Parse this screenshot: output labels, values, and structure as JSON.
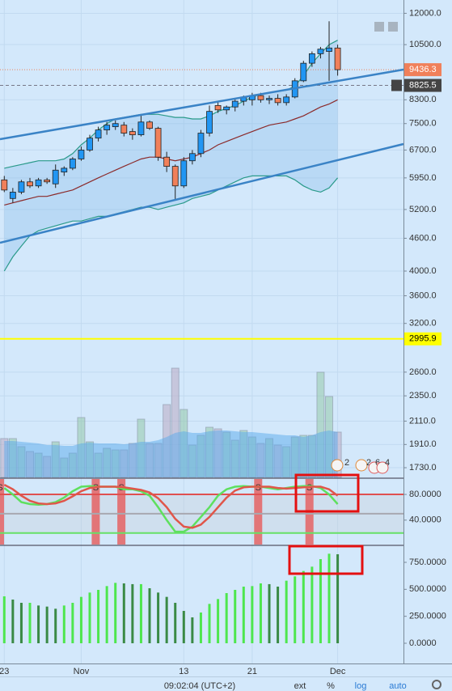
{
  "chart_data": [
    {
      "type": "candlestick",
      "x": [
        0,
        1,
        2,
        3,
        4,
        5,
        6,
        7,
        8,
        9,
        10,
        11,
        12,
        13,
        14,
        15,
        16,
        17,
        18,
        19,
        20,
        21,
        22,
        23,
        24,
        25,
        26,
        27,
        28,
        29,
        30,
        31,
        32,
        33,
        34,
        35,
        36,
        37,
        38,
        39
      ],
      "open": [
        5900,
        5450,
        5600,
        5850,
        5750,
        5900,
        5800,
        6100,
        6200,
        6450,
        6700,
        7050,
        7300,
        7400,
        7450,
        7250,
        7150,
        7550,
        7350,
        6500,
        6250,
        5750,
        6400,
        6600,
        7200,
        8100,
        7950,
        8050,
        8250,
        8300,
        8450,
        8300,
        8350,
        8200,
        8400,
        9000,
        9700,
        10100,
        10200,
        10350
      ],
      "high": [
        6000,
        5700,
        5900,
        5950,
        5950,
        5950,
        6300,
        6250,
        6500,
        6800,
        7150,
        7400,
        7550,
        7600,
        7550,
        7350,
        7800,
        7600,
        7400,
        6650,
        6300,
        6500,
        6700,
        7300,
        8100,
        8250,
        8100,
        8350,
        8450,
        8550,
        8550,
        8450,
        8500,
        8500,
        9100,
        9800,
        10200,
        10400,
        11600,
        10500
      ],
      "low": [
        5600,
        5350,
        5550,
        5700,
        5700,
        5800,
        5700,
        6000,
        6150,
        6400,
        6650,
        6950,
        7150,
        7300,
        7100,
        7000,
        7100,
        7300,
        6400,
        6100,
        5400,
        5700,
        6300,
        6500,
        7100,
        7850,
        7800,
        7900,
        8100,
        8100,
        8200,
        8150,
        8100,
        8100,
        8350,
        8950,
        9550,
        9900,
        9000,
        9200
      ],
      "close": [
        5650,
        5600,
        5850,
        5750,
        5900,
        5850,
        6150,
        6200,
        6450,
        6700,
        7050,
        7300,
        7450,
        7500,
        7200,
        7150,
        7550,
        7350,
        6500,
        6250,
        5750,
        6400,
        6600,
        7200,
        7900,
        7950,
        8050,
        8250,
        8400,
        8450,
        8300,
        8350,
        8200,
        8400,
        9000,
        9700,
        10100,
        10300,
        10350,
        9436.3
      ],
      "up_color": "#2196f3",
      "down_color": "#f0805a",
      "upper_band": [
        6200,
        6250,
        6300,
        6350,
        6400,
        6400,
        6400,
        6450,
        6600,
        6850,
        7050,
        7300,
        7500,
        7650,
        7700,
        7750,
        7800,
        7800,
        7800,
        7750,
        7700,
        7700,
        7650,
        7650,
        7750,
        7900,
        8000,
        8100,
        8250,
        8400,
        8500,
        8550,
        8600,
        8650,
        8800,
        9200,
        9700,
        10100,
        10500,
        10700
      ],
      "middle_band": [
        5300,
        5350,
        5400,
        5450,
        5500,
        5500,
        5550,
        5600,
        5650,
        5750,
        5850,
        5950,
        6050,
        6150,
        6250,
        6350,
        6450,
        6500,
        6500,
        6450,
        6400,
        6450,
        6500,
        6600,
        6700,
        6850,
        6950,
        7050,
        7150,
        7250,
        7350,
        7450,
        7500,
        7550,
        7650,
        7750,
        7900,
        8050,
        8150,
        8300
      ],
      "lower_band": [
        4000,
        4250,
        4450,
        4650,
        4750,
        4800,
        4850,
        4900,
        4950,
        4950,
        5000,
        5050,
        5050,
        5100,
        5150,
        5200,
        5250,
        5250,
        5200,
        5250,
        5300,
        5350,
        5450,
        5500,
        5550,
        5650,
        5750,
        5850,
        5950,
        6000,
        6000,
        6000,
        6000,
        6000,
        5900,
        5750,
        5650,
        5600,
        5700,
        5950
      ],
      "band_colors": [
        "#2a9a8a",
        "#8b2a2a",
        "#2a9a8a"
      ],
      "volume": [
        48,
        48,
        38,
        32,
        30,
        26,
        44,
        24,
        30,
        74,
        44,
        30,
        36,
        34,
        34,
        42,
        72,
        42,
        42,
        90,
        135,
        84,
        40,
        52,
        62,
        60,
        56,
        46,
        58,
        50,
        42,
        48,
        40,
        38,
        50,
        52,
        52,
        130,
        100,
        56
      ],
      "volume_ma": [
        45,
        45,
        44,
        43,
        42,
        40,
        40,
        39,
        39,
        42,
        43,
        42,
        42,
        42,
        41,
        42,
        44,
        44,
        46,
        50,
        55,
        57,
        55,
        55,
        57,
        58,
        58,
        57,
        56,
        56,
        55,
        54,
        53,
        52,
        52,
        50,
        52,
        56,
        58,
        56
      ],
      "volume_ylim": [
        0,
        150
      ],
      "last_price": 9436.3,
      "marker_price": 8825.5,
      "hline_price": 2995.9,
      "xlim": [
        -0.5,
        46.7
      ],
      "xticks": [
        {
          "value": 0,
          "label": "23"
        },
        {
          "value": 9,
          "label": "Nov"
        },
        {
          "value": 21,
          "label": "13"
        },
        {
          "value": 29,
          "label": "21"
        },
        {
          "value": 39,
          "label": "Dec"
        }
      ],
      "log": true,
      "ylim": [
        1660,
        12700
      ],
      "yticks": [
        {
          "value": 12000,
          "label": "12000.0"
        },
        {
          "value": 10500,
          "label": "10500.0"
        },
        {
          "value": 8300,
          "label": "8300.0"
        },
        {
          "value": 7500,
          "label": "7500.0"
        },
        {
          "value": 6700,
          "label": "6700.0"
        },
        {
          "value": 5950,
          "label": "5950.0"
        },
        {
          "value": 5200,
          "label": "5200.0"
        },
        {
          "value": 4600,
          "label": "4600.0"
        },
        {
          "value": 4000,
          "label": "4000.0"
        },
        {
          "value": 3600,
          "label": "3600.0"
        },
        {
          "value": 3200,
          "label": "3200.0"
        },
        {
          "value": 2600,
          "label": "2600.0"
        },
        {
          "value": 2350,
          "label": "2350.0"
        },
        {
          "value": 2110,
          "label": "2110.0"
        },
        {
          "value": 1910,
          "label": "1910.0"
        },
        {
          "value": 1730,
          "label": "1730.0"
        }
      ],
      "grid": true
    },
    {
      "type": "stochastic",
      "k": [
        90,
        80,
        68,
        65,
        64,
        65,
        68,
        75,
        85,
        92,
        93,
        92,
        92,
        92,
        88,
        88,
        85,
        78,
        60,
        40,
        22,
        22,
        30,
        45,
        60,
        78,
        88,
        92,
        93,
        92,
        92,
        90,
        88,
        90,
        92,
        93,
        93,
        90,
        80,
        65
      ],
      "d": [
        95,
        88,
        78,
        70,
        66,
        65,
        66,
        70,
        77,
        85,
        90,
        92,
        92,
        92,
        91,
        89,
        87,
        83,
        74,
        60,
        42,
        30,
        28,
        33,
        45,
        60,
        75,
        86,
        91,
        92,
        92,
        92,
        90,
        89,
        90,
        91,
        92,
        92,
        88,
        78
      ],
      "k_color": "#5ee05e",
      "d_color": "#e0564a",
      "levels": [
        80,
        50,
        20
      ],
      "level_colors": [
        "#e05050",
        "#a8a8b0",
        "#66e066"
      ],
      "signals": [
        -0.5,
        10.7,
        13.7,
        29.7,
        35.7
      ],
      "signal_label": "S",
      "ylim": [
        2,
        104
      ],
      "yticks": [
        {
          "value": 80,
          "label": "80.0000"
        },
        {
          "value": 40,
          "label": "40.0000"
        }
      ]
    },
    {
      "type": "bar",
      "values": [
        435,
        405,
        375,
        375,
        350,
        340,
        320,
        350,
        375,
        430,
        470,
        495,
        530,
        560,
        555,
        548,
        548,
        510,
        470,
        430,
        375,
        300,
        240,
        285,
        365,
        410,
        465,
        495,
        525,
        530,
        555,
        548,
        525,
        580,
        620,
        670,
        710,
        780,
        830,
        825
      ],
      "up_color": "#4ee64e",
      "down_color": "#3a8a45",
      "ylim": [
        -187.5,
        900
      ],
      "yticks": [
        {
          "value": 750,
          "label": "750.0000"
        },
        {
          "value": 500,
          "label": "500.0000"
        },
        {
          "value": 250,
          "label": "250.0000"
        },
        {
          "value": 0,
          "label": "0.0000"
        }
      ]
    }
  ],
  "events": [
    "2",
    "2",
    "6",
    "4"
  ],
  "footer": {
    "time": "09:02:04 (UTC+2)",
    "buttons": [
      "ext",
      "%",
      "log",
      "auto"
    ]
  }
}
